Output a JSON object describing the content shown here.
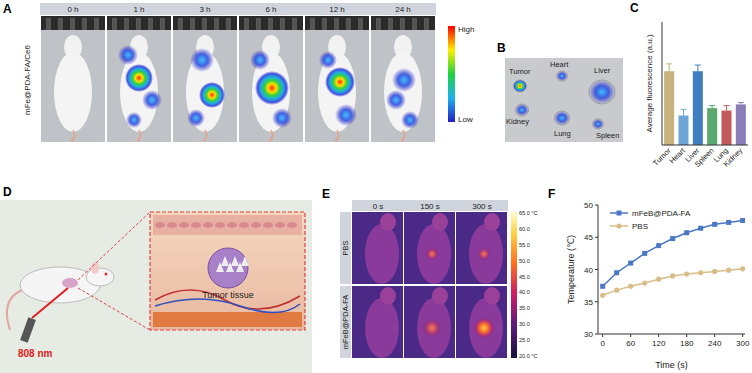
{
  "chart_data": [
    {
      "type": "bar",
      "y_label": "Average fluorescence (a.u.)",
      "categories": [
        "Tumor",
        "Heart",
        "Liver",
        "Spleen",
        "Lung",
        "Kidney"
      ],
      "values": [
        60,
        24,
        60,
        30,
        28,
        33
      ],
      "errors": [
        6,
        5,
        5,
        2,
        4,
        1.5
      ],
      "colors": [
        "#c9b27c",
        "#6ea6d8",
        "#3f7fc0",
        "#5aa96e",
        "#c45b5b",
        "#8b7bb8"
      ],
      "ylim": [
        0,
        100
      ],
      "yticks": [],
      "tick_labels": "x"
    },
    {
      "type": "line",
      "x_label": "Time (s)",
      "y_label": "Temperature (℃)",
      "x": [
        0,
        30,
        60,
        90,
        120,
        150,
        180,
        210,
        240,
        270,
        300
      ],
      "series": [
        {
          "name": "mFeB@PDA-FA",
          "color": "#4a78c2",
          "marker": "square",
          "values": [
            37.4,
            39.5,
            41.0,
            42.5,
            43.7,
            44.8,
            45.7,
            46.4,
            47.0,
            47.3,
            47.6
          ]
        },
        {
          "name": "PBS",
          "color": "#d8bd8a",
          "marker": "circle",
          "values": [
            36.0,
            36.8,
            37.4,
            37.9,
            38.5,
            39.0,
            39.3,
            39.5,
            39.7,
            39.9,
            40.1
          ]
        }
      ],
      "xlim": [
        -10,
        305
      ],
      "xticks": [
        0,
        60,
        120,
        180,
        240,
        300
      ],
      "ylim": [
        30,
        50
      ],
      "yticks": [
        30,
        35,
        40,
        45,
        50
      ],
      "legend": "upper left"
    }
  ],
  "panels": {
    "letters": [
      "A",
      "B",
      "C",
      "D",
      "E",
      "F"
    ],
    "A": {
      "times": [
        "0 h",
        "1 h",
        "3 h",
        "6 h",
        "12 h",
        "24 h"
      ],
      "row_label": "mFe@PDA-FA/Ce6",
      "colorbar": {
        "high": "High",
        "low": "Low"
      }
    },
    "B": {
      "organs": [
        "Tumor",
        "Heart",
        "Liver",
        "Kidney",
        "Lung",
        "Spleen"
      ]
    },
    "D": {
      "tissue_label": "Tumor tissue",
      "laser_label": "808 nm"
    },
    "E": {
      "rows": [
        "PBS",
        "mFeB@PDA-FA"
      ],
      "times": [
        "0 s",
        "150 s",
        "300 s"
      ],
      "colorbar_labels": [
        "65.0 °C",
        "60.0",
        "55.0",
        "50.0",
        "45.0",
        "40.0",
        "35.0",
        "30.0",
        "25.0",
        "20.0 °C"
      ]
    }
  }
}
